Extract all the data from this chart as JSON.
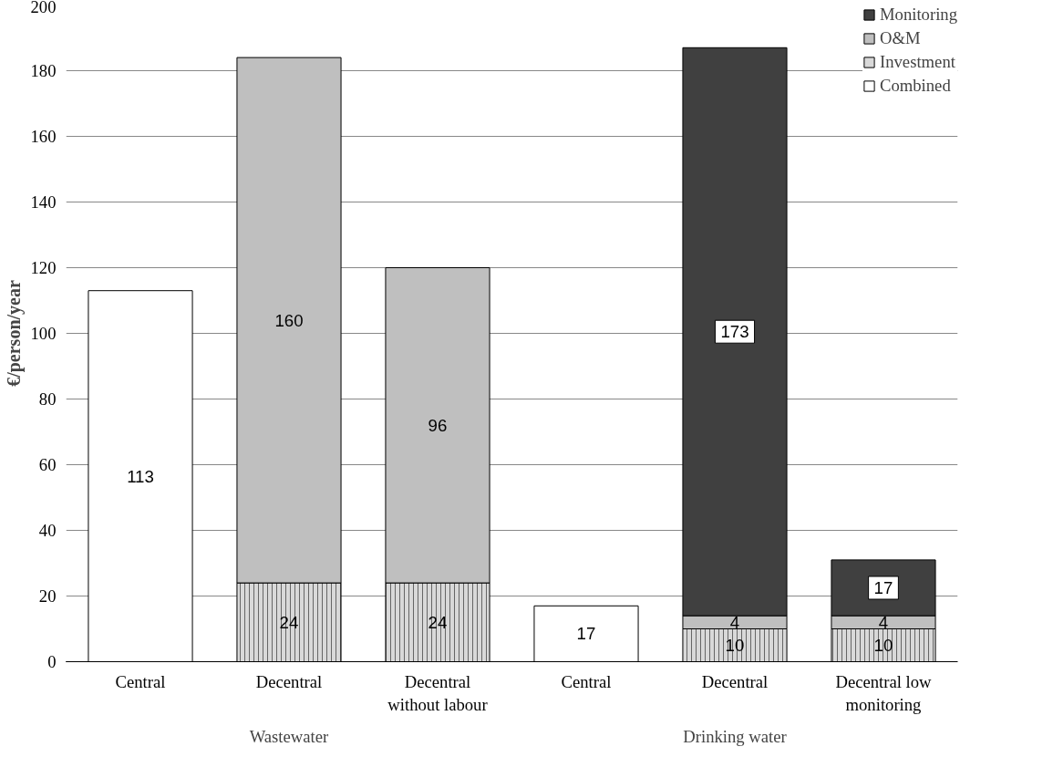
{
  "chart_data": {
    "type": "bar",
    "stacked": true,
    "ylabel": "€/person/year",
    "categories": [
      "Central",
      "Decentral",
      "Decentral without labour",
      "Central",
      "Decentral",
      "Decentral low monitoring"
    ],
    "series": [
      {
        "name": "Combined",
        "color": "#ffffff",
        "values": [
          113,
          null,
          null,
          17,
          null,
          null
        ]
      },
      {
        "name": "Investment",
        "color": "#d9d9d9",
        "values": [
          null,
          24,
          24,
          null,
          10,
          10
        ]
      },
      {
        "name": "O&M",
        "color": "#bfbfbf",
        "values": [
          null,
          160,
          96,
          null,
          4,
          4
        ]
      },
      {
        "name": "Monitoring",
        "color": "#404040",
        "values": [
          null,
          null,
          null,
          null,
          173,
          17
        ]
      }
    ],
    "annotations": [
      "Wastewater",
      "Drinking water"
    ],
    "ylim": [
      0,
      200
    ],
    "yticks": [
      0,
      20,
      40,
      60,
      80,
      100,
      120,
      140,
      160,
      180,
      200
    ],
    "grid": "y",
    "legend": "top right",
    "data_labels": true
  }
}
